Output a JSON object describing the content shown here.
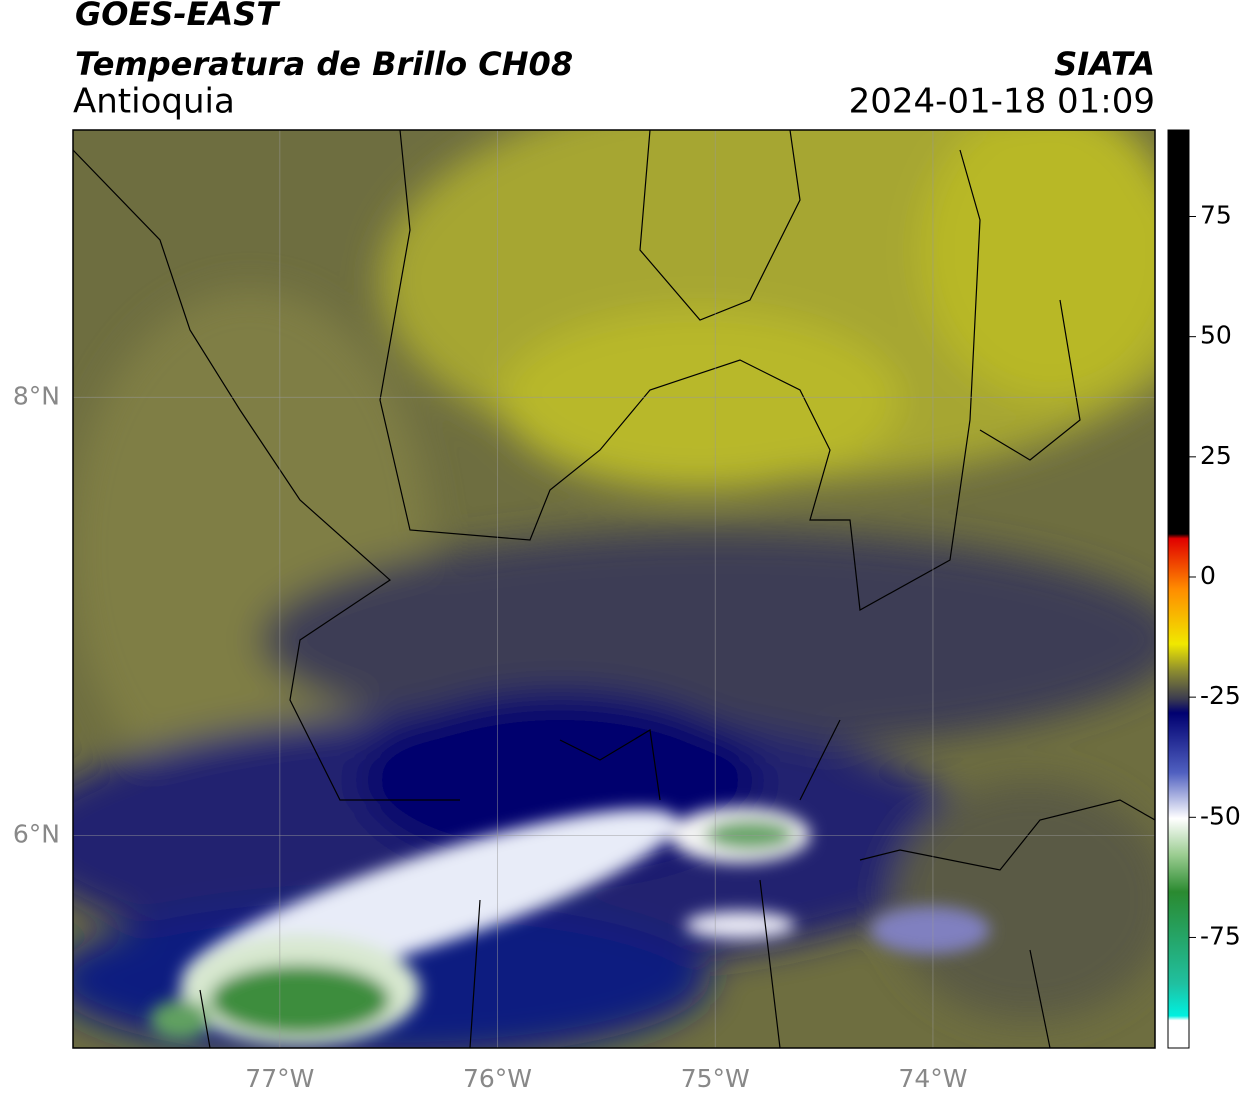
{
  "header": {
    "title": "GOES-EAST",
    "subtitle": "Temperatura de Brillo CH08",
    "region": "Antioquia",
    "source": "SIATA",
    "datetime": "2024-01-18 01:09"
  },
  "map": {
    "xlim": [
      -77.95,
      -72.98
    ],
    "ylim": [
      5.03,
      9.22
    ],
    "xticks": [
      {
        "value": -77,
        "label": "77°W"
      },
      {
        "value": -76,
        "label": "76°W"
      },
      {
        "value": -75,
        "label": "75°W"
      },
      {
        "value": -74,
        "label": "74°W"
      }
    ],
    "yticks": [
      {
        "value": 8,
        "label": "8°N"
      },
      {
        "value": 6,
        "label": "6°N"
      }
    ]
  },
  "colorbar": {
    "lim": [
      -98,
      93
    ],
    "ticks": [
      75,
      50,
      25,
      0,
      -25,
      -50,
      -75
    ]
  }
}
